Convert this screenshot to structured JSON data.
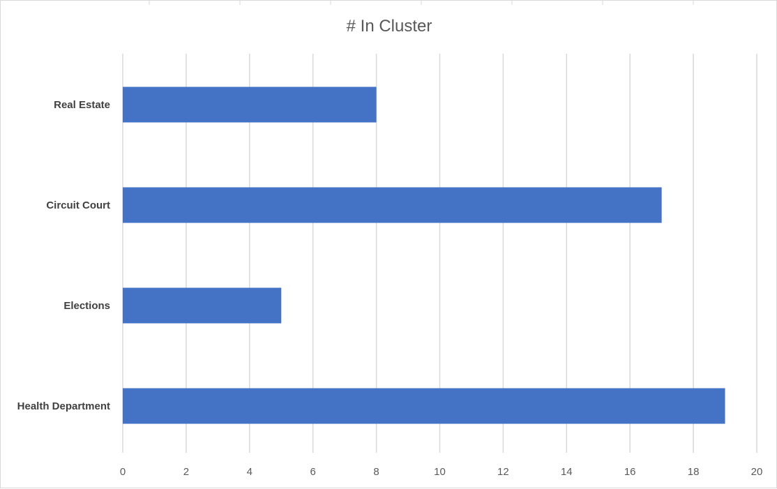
{
  "chart_data": {
    "type": "bar",
    "orientation": "horizontal",
    "title": "# In Cluster",
    "categories": [
      "Real Estate",
      "Circuit Court",
      "Elections",
      "Health Department"
    ],
    "values": [
      8,
      17,
      5,
      19
    ],
    "xlim": [
      0,
      20
    ],
    "xticks": [
      0,
      2,
      4,
      6,
      8,
      10,
      12,
      14,
      16,
      18,
      20
    ],
    "xlabel": "",
    "ylabel": "",
    "grid": "vertical",
    "legend": "none",
    "bar_color": "#4472c4",
    "grid_color": "#d9d9d9"
  }
}
